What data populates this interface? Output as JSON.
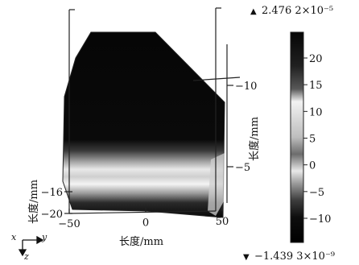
{
  "chart_data": {
    "type": "heatmap",
    "axes": {
      "x": {
        "label": "长度/mm",
        "ticks": [
          -50,
          0,
          50
        ]
      },
      "y": {
        "label": "长度/mm",
        "ticks": [
          -10,
          -5
        ]
      },
      "z": {
        "label": "长度/mm",
        "ticks": [
          -16,
          -20
        ]
      }
    },
    "colorbar": {
      "max_label": "2.476 2×10⁻⁵",
      "min_label": "−1.439 3×10⁻⁹",
      "ticks": [
        20,
        15,
        10,
        5,
        0,
        -5,
        -10
      ],
      "tick_labels": [
        "20",
        "15",
        "10",
        "5",
        "0",
        "−5",
        "−10"
      ],
      "range": [
        -14,
        24.76
      ],
      "max_marker": "▲",
      "min_marker": "▼"
    },
    "bands": [
      {
        "region": "upper",
        "level": 24
      },
      {
        "region": "lower-bright",
        "level": 15
      },
      {
        "region": "lower",
        "level": -12
      }
    ],
    "orientation_triad": {
      "x": "x",
      "y": "y",
      "z": "z"
    }
  }
}
